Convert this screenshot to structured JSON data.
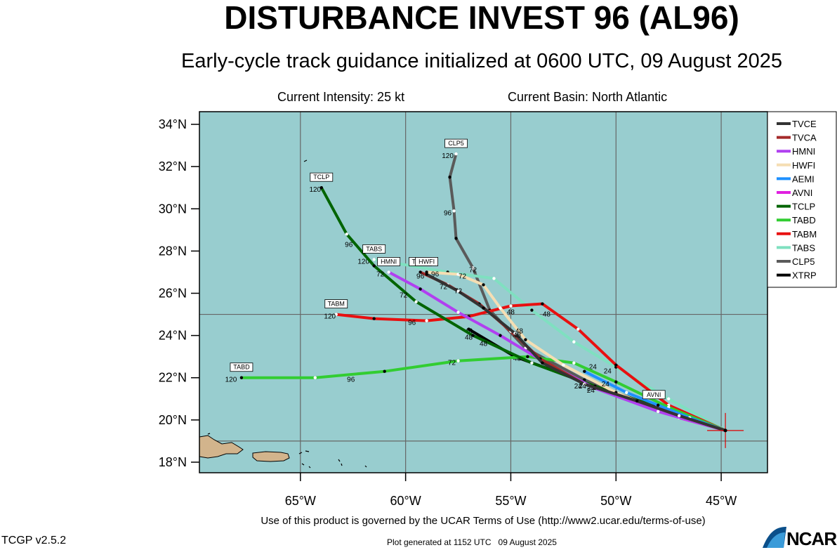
{
  "title": "DISTURBANCE INVEST 96 (AL96)",
  "subtitle": "Early-cycle track guidance initialized at 0600 UTC, 09 August 2025",
  "current_intensity": "Current Intensity: 25 kt",
  "current_basin": "Current Basin: North Atlantic",
  "terms": "Use of this product is governed by the UCAR Terms of Use (http://www2.ucar.edu/terms-of-use)",
  "version": "TCGP v2.5.2",
  "generated": "Plot generated at 1152 UTC   09 August 2025",
  "logo_text": "NCAR",
  "colors": {
    "ocean": "#98cdcf",
    "land": "#d2b48c",
    "grid": "#666666"
  },
  "chart_data": {
    "type": "map",
    "lon_range": [
      -69.8,
      -42.8
    ],
    "lat_range": [
      17.5,
      34.6
    ],
    "x_ticks": [
      {
        "lon": -65,
        "label": "65°W"
      },
      {
        "lon": -60,
        "label": "60°W"
      },
      {
        "lon": -55,
        "label": "55°W"
      },
      {
        "lon": -50,
        "label": "50°W"
      },
      {
        "lon": -45,
        "label": "45°W"
      }
    ],
    "y_ticks": [
      {
        "lat": 18,
        "label": "18°N"
      },
      {
        "lat": 20,
        "label": "20°N"
      },
      {
        "lat": 22,
        "label": "22°N"
      },
      {
        "lat": 24,
        "label": "24°N"
      },
      {
        "lat": 26,
        "label": "26°N"
      },
      {
        "lat": 28,
        "label": "28°N"
      },
      {
        "lat": 30,
        "label": "30°N"
      },
      {
        "lat": 32,
        "label": "32°N"
      },
      {
        "lat": 34,
        "label": "34°N"
      }
    ],
    "grid_lons": [
      -65,
      -60,
      -55,
      -50,
      -45
    ],
    "grid_lats": [
      19,
      25
    ],
    "current_position": {
      "lon": -44.8,
      "lat": 19.5
    },
    "series": [
      {
        "name": "TVCE",
        "color": "#333333",
        "tag": "",
        "points": [
          [
            -44.8,
            19.5
          ],
          [
            -47,
            20.2
          ],
          [
            -49,
            20.9
          ],
          [
            -51.5,
            21.7
          ],
          [
            -53.5,
            22.7
          ],
          [
            -54.8,
            24.1
          ],
          [
            -56.3,
            25.3
          ],
          [
            -57.5,
            26.1
          ],
          [
            -59.0,
            26.9
          ]
        ],
        "labels": [
          [
            -51.6,
            21.5,
            "24"
          ],
          [
            -54.7,
            23.9,
            "48"
          ],
          [
            -57.5,
            26.0,
            "72"
          ],
          [
            -59.3,
            26.7,
            "96"
          ]
        ]
      },
      {
        "name": "TVCA",
        "color": "#a52a2a",
        "tag": "TVCA",
        "points": [
          [
            -44.8,
            19.5
          ],
          [
            -47,
            20.2
          ],
          [
            -49,
            20.9
          ],
          [
            -51.5,
            21.7
          ],
          [
            -53.6,
            22.9
          ],
          [
            -55,
            24.2
          ],
          [
            -56.5,
            25.5
          ],
          [
            -58,
            26.4
          ],
          [
            -59.3,
            27.0
          ]
        ],
        "labels": [
          [
            -51.8,
            21.5,
            "24"
          ],
          [
            -54.6,
            24.1,
            "48"
          ],
          [
            -58.2,
            26.2,
            "72"
          ],
          [
            -58.6,
            26.8,
            "96"
          ]
        ]
      },
      {
        "name": "HMNI",
        "color": "#b040f0",
        "tag": "HMNI",
        "points": [
          [
            -44.8,
            19.5
          ],
          [
            -48,
            20.4
          ],
          [
            -51,
            21.5
          ],
          [
            -53.5,
            22.8
          ],
          [
            -55.5,
            24.0
          ],
          [
            -57.5,
            25.1
          ],
          [
            -59.3,
            26.2
          ],
          [
            -60.8,
            27.0
          ]
        ],
        "labels": [
          [
            -51.2,
            21.3,
            "24"
          ],
          [
            -56.3,
            23.5,
            "48"
          ],
          [
            -60.1,
            25.8,
            "72"
          ],
          [
            -61.2,
            26.8,
            "72"
          ]
        ]
      },
      {
        "name": "HWFI",
        "color": "#f5deb3",
        "tag": "HWFI",
        "points": [
          [
            -44.8,
            19.5
          ],
          [
            -47.5,
            20.3
          ],
          [
            -50,
            21.3
          ],
          [
            -52.5,
            22.6
          ],
          [
            -54.3,
            23.8
          ],
          [
            -55.5,
            25.3
          ],
          [
            -56.3,
            26.4
          ],
          [
            -57.5,
            26.9
          ],
          [
            -59.0,
            27.0
          ]
        ],
        "labels": [
          [
            -50.5,
            21.6,
            "24"
          ],
          [
            -55.0,
            25.0,
            "48"
          ],
          [
            -57.3,
            26.7,
            "72"
          ]
        ]
      },
      {
        "name": "AEMI",
        "color": "#1e90ff",
        "tag": "",
        "points": [
          [
            -44.8,
            19.5
          ],
          [
            -46.5,
            20.1
          ],
          [
            -48,
            20.7
          ],
          [
            -49.5,
            21.3
          ],
          [
            -51.5,
            22.3
          ]
        ],
        "labels": [
          [
            -50.4,
            22.2,
            "24"
          ]
        ]
      },
      {
        "name": "AVNI",
        "color": "#e020e0",
        "tag": "AVNI",
        "points": [
          [
            -44.8,
            19.5
          ],
          [
            -47.0,
            20.1
          ],
          [
            -48.2,
            20.7
          ]
        ],
        "labels": []
      },
      {
        "name": "TCLP",
        "color": "#006400",
        "tag": "TCLP",
        "points": [
          [
            -44.8,
            19.5
          ],
          [
            -48,
            20.6
          ],
          [
            -51,
            21.6
          ],
          [
            -54,
            22.7
          ],
          [
            -56.8,
            24.0
          ],
          [
            -59.5,
            25.6
          ],
          [
            -61.5,
            27.3
          ],
          [
            -62.8,
            28.8
          ],
          [
            -64.0,
            31.0
          ]
        ],
        "labels": [
          [
            -51.2,
            21.4,
            "24"
          ],
          [
            -57.0,
            23.8,
            "48"
          ],
          [
            -62.7,
            28.2,
            "96"
          ],
          [
            -64.3,
            30.8,
            "120"
          ]
        ]
      },
      {
        "name": "TABD",
        "color": "#32cd32",
        "tag": "TABD",
        "points": [
          [
            -44.8,
            19.5
          ],
          [
            -47.5,
            20.6
          ],
          [
            -50,
            21.8
          ],
          [
            -52,
            22.7
          ],
          [
            -54.2,
            23.0
          ],
          [
            -57.5,
            22.8
          ],
          [
            -61,
            22.3
          ],
          [
            -64.3,
            22.0
          ],
          [
            -67.8,
            22.0
          ]
        ],
        "labels": [
          [
            -57.8,
            22.6,
            "72"
          ],
          [
            -62.6,
            21.8,
            "96"
          ],
          [
            -68.3,
            21.8,
            "120"
          ]
        ]
      },
      {
        "name": "TABM",
        "color": "#e81010",
        "tag": "TABM",
        "points": [
          [
            -44.8,
            19.5
          ],
          [
            -47.5,
            20.7
          ],
          [
            -50,
            22.6
          ],
          [
            -51.8,
            24.3
          ],
          [
            -53.5,
            25.5
          ],
          [
            -55,
            25.4
          ],
          [
            -57,
            24.9
          ],
          [
            -59,
            24.7
          ],
          [
            -61.5,
            24.8
          ],
          [
            -63.3,
            25.0
          ]
        ],
        "labels": [
          [
            -53.3,
            24.9,
            "48"
          ],
          [
            -59.7,
            24.5,
            "96"
          ],
          [
            -63.6,
            24.8,
            "120"
          ]
        ]
      },
      {
        "name": "TABS",
        "color": "#7fe0c0",
        "tag": "TABS",
        "points": [
          [
            -44.8,
            19.5
          ],
          [
            -47.5,
            21.0
          ],
          [
            -50,
            22.5
          ],
          [
            -52,
            23.7
          ],
          [
            -54,
            25.2
          ],
          [
            -55.8,
            26.7
          ],
          [
            -58,
            27.0
          ],
          [
            -61.5,
            27.6
          ]
        ],
        "labels": [
          [
            -51.1,
            22.4,
            "24"
          ],
          [
            -62.0,
            27.4,
            "120"
          ]
        ]
      },
      {
        "name": "CLP5",
        "color": "#5a5a5a",
        "tag": "CLP5",
        "points": [
          [
            -44.8,
            19.5
          ],
          [
            -48.5,
            20.6
          ],
          [
            -51.5,
            21.9
          ],
          [
            -54.3,
            23.4
          ],
          [
            -56,
            25.2
          ],
          [
            -56.8,
            27.2
          ],
          [
            -57.6,
            28.6
          ],
          [
            -57.7,
            29.9
          ],
          [
            -57.9,
            31.5
          ],
          [
            -57.6,
            32.6
          ]
        ],
        "labels": [
          [
            -56.8,
            27.0,
            "72"
          ],
          [
            -58.0,
            29.7,
            "96"
          ],
          [
            -58.0,
            32.4,
            "120"
          ]
        ]
      },
      {
        "name": "XTRP",
        "color": "#000000",
        "tag": "",
        "points": [
          [
            -44.8,
            19.5
          ],
          [
            -48,
            20.6
          ],
          [
            -51.5,
            21.8
          ],
          [
            -54.8,
            23.0
          ],
          [
            -57,
            24.3
          ]
        ],
        "labels": [
          [
            -54.7,
            22.8,
            "48"
          ],
          [
            -57.0,
            24.1,
            "48"
          ]
        ]
      }
    ]
  }
}
